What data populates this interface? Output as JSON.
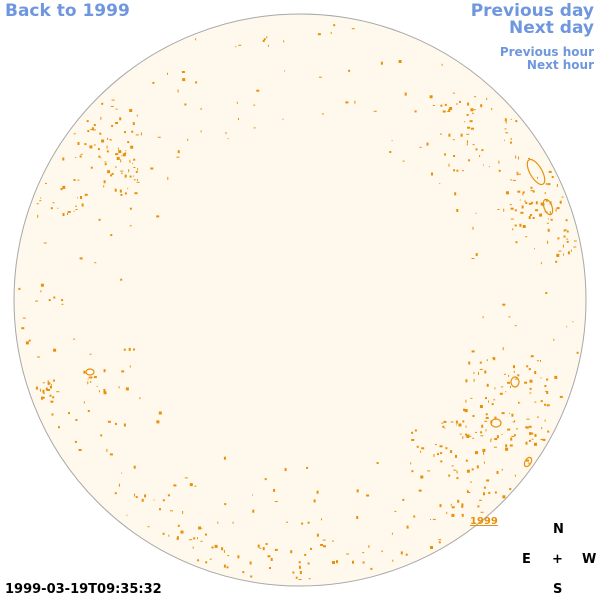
{
  "nav": {
    "back_label": "Back to 1999",
    "previous_day": "Previous day",
    "next_day": "Next day",
    "previous_hour": "Previous hour",
    "next_hour": "Next hour"
  },
  "compass": {
    "north": "N",
    "east": "E",
    "west": "W",
    "south": "S",
    "center": "+"
  },
  "timestamp": "1999-03-19T09:35:32",
  "region_label": "1999",
  "colors": {
    "disk_fill": "#fef9ec",
    "disk_outline": "#a8a8a8",
    "contour": "#e8900a",
    "link": "#6f97dd"
  }
}
